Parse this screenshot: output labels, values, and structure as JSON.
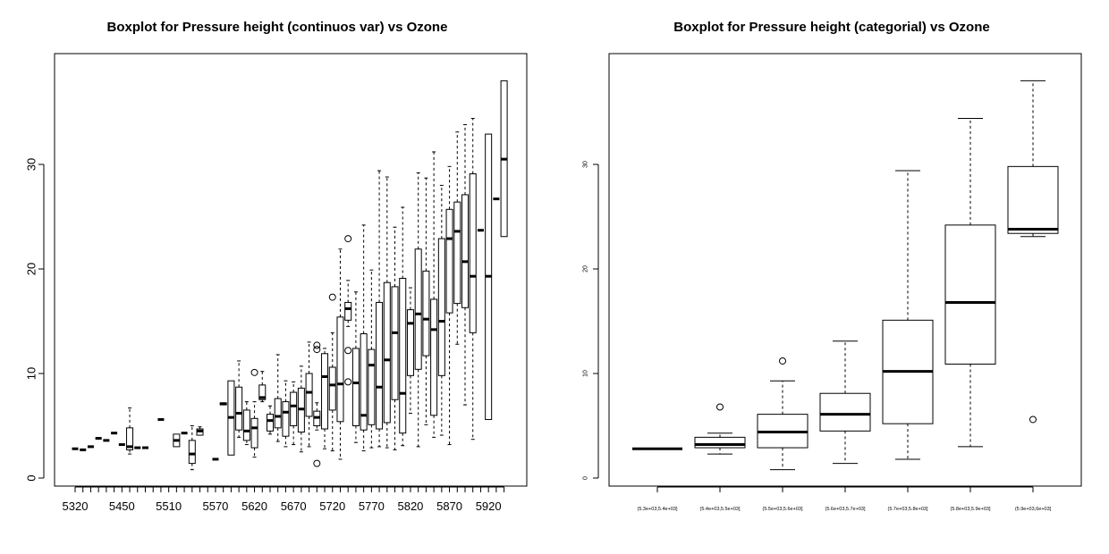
{
  "chart_data": [
    {
      "type": "boxplot",
      "title": "Boxplot for Pressure height (continuos var) vs Ozone",
      "xlabel": "",
      "ylabel": "",
      "ylim": [
        0,
        40
      ],
      "yticks": [
        0,
        10,
        20,
        30
      ],
      "ytick_labels": [
        "0",
        "10",
        "20",
        "30"
      ],
      "categories": [
        "5320",
        "5360",
        "5370",
        "5410",
        "5420",
        "5440",
        "5450",
        "5460",
        "5470",
        "5480",
        "5490",
        "5500",
        "5510",
        "5520",
        "5530",
        "5540",
        "5550",
        "5560",
        "5570",
        "5580",
        "5590",
        "5600",
        "5610",
        "5620",
        "5630",
        "5640",
        "5650",
        "5660",
        "5670",
        "5680",
        "5690",
        "5700",
        "5710",
        "5720",
        "5730",
        "5740",
        "5750",
        "5760",
        "5770",
        "5780",
        "5790",
        "5800",
        "5810",
        "5820",
        "5830",
        "5840",
        "5850",
        "5860",
        "5870",
        "5880",
        "5890",
        "5900",
        "5910",
        "5920",
        "5930",
        "5940"
      ],
      "shown_tick_labels": [
        "5320",
        "5450",
        "5510",
        "5570",
        "5620",
        "5670",
        "5720",
        "5770",
        "5820",
        "5870",
        "5920"
      ],
      "boxes": [
        {
          "x": "5320",
          "min": 2.8,
          "q1": 2.8,
          "median": 2.8,
          "q3": 2.8,
          "max": 2.8,
          "outliers": []
        },
        {
          "x": "5360",
          "min": 2.7,
          "q1": 2.7,
          "median": 2.7,
          "q3": 2.7,
          "max": 2.7,
          "outliers": []
        },
        {
          "x": "5370",
          "min": 3.0,
          "q1": 3.0,
          "median": 3.0,
          "q3": 3.0,
          "max": 3.0,
          "outliers": []
        },
        {
          "x": "5410",
          "min": 3.8,
          "q1": 3.8,
          "median": 3.8,
          "q3": 3.8,
          "max": 3.8,
          "outliers": []
        },
        {
          "x": "5420",
          "min": 3.6,
          "q1": 3.6,
          "median": 3.6,
          "q3": 3.6,
          "max": 3.6,
          "outliers": []
        },
        {
          "x": "5440",
          "min": 4.3,
          "q1": 4.3,
          "median": 4.3,
          "q3": 4.3,
          "max": 4.3,
          "outliers": []
        },
        {
          "x": "5450",
          "min": 3.2,
          "q1": 3.2,
          "median": 3.2,
          "q3": 3.2,
          "max": 3.2,
          "outliers": []
        },
        {
          "x": "5460",
          "min": 2.3,
          "q1": 2.7,
          "median": 3.0,
          "q3": 4.8,
          "max": 6.7,
          "outliers": []
        },
        {
          "x": "5470",
          "min": 2.9,
          "q1": 2.9,
          "median": 2.9,
          "q3": 2.9,
          "max": 2.9,
          "outliers": []
        },
        {
          "x": "5480",
          "min": 2.9,
          "q1": 2.9,
          "median": 2.9,
          "q3": 2.9,
          "max": 2.9,
          "outliers": []
        },
        {
          "x": "5490",
          "min": null,
          "q1": null,
          "median": null,
          "q3": null,
          "max": null,
          "outliers": []
        },
        {
          "x": "5500",
          "min": 5.6,
          "q1": 5.6,
          "median": 5.6,
          "q3": 5.6,
          "max": 5.6,
          "outliers": []
        },
        {
          "x": "5510",
          "min": null,
          "q1": null,
          "median": null,
          "q3": null,
          "max": null,
          "outliers": []
        },
        {
          "x": "5520",
          "min": 3.0,
          "q1": 3.0,
          "median": 3.6,
          "q3": 4.2,
          "max": 4.2,
          "outliers": []
        },
        {
          "x": "5530",
          "min": 4.3,
          "q1": 4.3,
          "median": 4.3,
          "q3": 4.3,
          "max": 4.3,
          "outliers": []
        },
        {
          "x": "5540",
          "min": 0.8,
          "q1": 1.4,
          "median": 2.3,
          "q3": 3.6,
          "max": 5.0,
          "outliers": []
        },
        {
          "x": "5550",
          "min": 4.1,
          "q1": 4.1,
          "median": 4.5,
          "q3": 4.7,
          "max": 4.9,
          "outliers": []
        },
        {
          "x": "5560",
          "min": null,
          "q1": null,
          "median": null,
          "q3": null,
          "max": null,
          "outliers": []
        },
        {
          "x": "5570",
          "min": 1.8,
          "q1": 1.8,
          "median": 1.8,
          "q3": 1.8,
          "max": 1.8,
          "outliers": []
        },
        {
          "x": "5580",
          "min": 7.0,
          "q1": 7.0,
          "median": 7.1,
          "q3": 7.2,
          "max": 7.2,
          "outliers": []
        },
        {
          "x": "5590",
          "min": 2.2,
          "q1": 2.2,
          "median": 5.8,
          "q3": 9.3,
          "max": 9.3,
          "outliers": []
        },
        {
          "x": "5600",
          "min": 3.9,
          "q1": 4.6,
          "median": 6.2,
          "q3": 8.7,
          "max": 11.2,
          "outliers": []
        },
        {
          "x": "5610",
          "min": 3.2,
          "q1": 3.6,
          "median": 4.5,
          "q3": 6.5,
          "max": 7.3,
          "outliers": []
        },
        {
          "x": "5620",
          "min": 2.0,
          "q1": 2.9,
          "median": 4.8,
          "q3": 5.7,
          "max": 7.3,
          "outliers": [
            10.1
          ]
        },
        {
          "x": "5630",
          "min": 7.3,
          "q1": 7.5,
          "median": 7.7,
          "q3": 8.9,
          "max": 10.2,
          "outliers": []
        },
        {
          "x": "5640",
          "min": 4.2,
          "q1": 4.5,
          "median": 5.5,
          "q3": 6.1,
          "max": 6.9,
          "outliers": []
        },
        {
          "x": "5650",
          "min": 3.5,
          "q1": 4.8,
          "median": 5.9,
          "q3": 7.6,
          "max": 11.8,
          "outliers": []
        },
        {
          "x": "5660",
          "min": 3.0,
          "q1": 4.0,
          "median": 6.3,
          "q3": 7.3,
          "max": 9.3,
          "outliers": []
        },
        {
          "x": "5670",
          "min": 3.2,
          "q1": 5.0,
          "median": 6.9,
          "q3": 8.2,
          "max": 9.2,
          "outliers": []
        },
        {
          "x": "5680",
          "min": 2.5,
          "q1": 4.4,
          "median": 6.6,
          "q3": 8.6,
          "max": 10.7,
          "outliers": []
        },
        {
          "x": "5690",
          "min": 3.0,
          "q1": 5.9,
          "median": 8.2,
          "q3": 10.0,
          "max": 13.0,
          "outliers": []
        },
        {
          "x": "5700",
          "min": 4.6,
          "q1": 5.0,
          "median": 5.8,
          "q3": 6.4,
          "max": 7.2,
          "outliers": [
            12.3,
            12.7,
            1.4
          ]
        },
        {
          "x": "5710",
          "min": 2.8,
          "q1": 4.7,
          "median": 9.7,
          "q3": 11.9,
          "max": 12.4,
          "outliers": []
        },
        {
          "x": "5720",
          "min": 2.6,
          "q1": 6.5,
          "median": 8.9,
          "q3": 10.6,
          "max": 13.9,
          "outliers": [
            17.3
          ]
        },
        {
          "x": "5730",
          "min": 1.8,
          "q1": 5.4,
          "median": 9.0,
          "q3": 15.4,
          "max": 21.9,
          "outliers": []
        },
        {
          "x": "5740",
          "min": 14.5,
          "q1": 15.1,
          "median": 16.2,
          "q3": 16.8,
          "max": 18.9,
          "outliers": [
            22.9,
            12.2,
            9.2
          ]
        },
        {
          "x": "5750",
          "min": 3.4,
          "q1": 5.0,
          "median": 9.1,
          "q3": 12.4,
          "max": 17.8,
          "outliers": []
        },
        {
          "x": "5760",
          "min": 2.6,
          "q1": 4.6,
          "median": 6.0,
          "q3": 13.8,
          "max": 24.2,
          "outliers": []
        },
        {
          "x": "5770",
          "min": 2.9,
          "q1": 5.1,
          "median": 10.8,
          "q3": 12.3,
          "max": 19.9,
          "outliers": []
        },
        {
          "x": "5780",
          "min": 3.0,
          "q1": 4.7,
          "median": 8.7,
          "q3": 16.8,
          "max": 29.4,
          "outliers": []
        },
        {
          "x": "5790",
          "min": 2.9,
          "q1": 5.3,
          "median": 11.3,
          "q3": 18.7,
          "max": 28.8,
          "outliers": []
        },
        {
          "x": "5800",
          "min": 2.7,
          "q1": 7.5,
          "median": 13.9,
          "q3": 18.3,
          "max": 24.0,
          "outliers": []
        },
        {
          "x": "5810",
          "min": 3.1,
          "q1": 4.3,
          "median": 8.1,
          "q3": 19.1,
          "max": 25.9,
          "outliers": []
        },
        {
          "x": "5820",
          "min": 6.2,
          "q1": 9.8,
          "median": 14.8,
          "q3": 16.1,
          "max": 18.2,
          "outliers": []
        },
        {
          "x": "5830",
          "min": 3.0,
          "q1": 10.4,
          "median": 15.7,
          "q3": 21.9,
          "max": 29.2,
          "outliers": []
        },
        {
          "x": "5840",
          "min": 5.1,
          "q1": 11.7,
          "median": 15.2,
          "q3": 19.8,
          "max": 28.7,
          "outliers": []
        },
        {
          "x": "5850",
          "min": 3.9,
          "q1": 6.0,
          "median": 14.2,
          "q3": 17.1,
          "max": 31.2,
          "outliers": []
        },
        {
          "x": "5860",
          "min": 4.1,
          "q1": 9.8,
          "median": 15.0,
          "q3": 22.9,
          "max": 28.0,
          "outliers": []
        },
        {
          "x": "5870",
          "min": 3.2,
          "q1": 15.8,
          "median": 22.9,
          "q3": 25.7,
          "max": 29.8,
          "outliers": []
        },
        {
          "x": "5880",
          "min": 12.8,
          "q1": 16.7,
          "median": 23.6,
          "q3": 26.4,
          "max": 33.1,
          "outliers": []
        },
        {
          "x": "5890",
          "min": 7.0,
          "q1": 16.3,
          "median": 20.7,
          "q3": 27.1,
          "max": 33.8,
          "outliers": []
        },
        {
          "x": "5900",
          "min": 3.7,
          "q1": 13.9,
          "median": 19.3,
          "q3": 29.1,
          "max": 34.4,
          "outliers": []
        },
        {
          "x": "5910",
          "min": 23.7,
          "q1": 23.7,
          "median": 23.7,
          "q3": 23.7,
          "max": 23.7,
          "outliers": []
        },
        {
          "x": "5920",
          "min": 5.6,
          "q1": 5.6,
          "median": 19.3,
          "q3": 32.9,
          "max": 32.9,
          "outliers": []
        },
        {
          "x": "5930",
          "min": 26.7,
          "q1": 26.7,
          "median": 26.7,
          "q3": 26.7,
          "max": 26.7,
          "outliers": []
        },
        {
          "x": "5940",
          "min": 23.1,
          "q1": 23.1,
          "median": 30.5,
          "q3": 38.0,
          "max": 38.0,
          "outliers": []
        }
      ]
    },
    {
      "type": "boxplot",
      "title": "Boxplot for Pressure height (categorial) vs Ozone",
      "xlabel": "",
      "ylabel": "",
      "ylim": [
        0,
        40
      ],
      "yticks": [
        0,
        10,
        20,
        30
      ],
      "ytick_labels": [
        "0",
        "10",
        "20",
        "30"
      ],
      "categories": [
        "(5.3e+03,5.4e+03]",
        "(5.4e+03,5.5e+03]",
        "(5.5e+03,5.6e+03]",
        "(5.6e+03,5.7e+03]",
        "(5.7e+03,5.8e+03]",
        "(5.8e+03,5.9e+03]",
        "(5.9e+03,6e+03]"
      ],
      "boxes": [
        {
          "x": "(5.3e+03,5.4e+03]",
          "min": 2.8,
          "q1": 2.8,
          "median": 2.8,
          "q3": 2.8,
          "max": 2.8,
          "outliers": []
        },
        {
          "x": "(5.4e+03,5.5e+03]",
          "min": 2.3,
          "q1": 2.9,
          "median": 3.2,
          "q3": 3.9,
          "max": 4.3,
          "outliers": [
            6.8
          ]
        },
        {
          "x": "(5.5e+03,5.6e+03]",
          "min": 0.8,
          "q1": 2.9,
          "median": 4.4,
          "q3": 6.1,
          "max": 9.3,
          "outliers": [
            11.2
          ]
        },
        {
          "x": "(5.6e+03,5.7e+03]",
          "min": 1.4,
          "q1": 4.5,
          "median": 6.1,
          "q3": 8.1,
          "max": 13.1,
          "outliers": []
        },
        {
          "x": "(5.7e+03,5.8e+03]",
          "min": 1.8,
          "q1": 5.2,
          "median": 10.2,
          "q3": 15.1,
          "max": 29.4,
          "outliers": []
        },
        {
          "x": "(5.8e+03,5.9e+03]",
          "min": 3.0,
          "q1": 10.9,
          "median": 16.8,
          "q3": 24.2,
          "max": 34.4,
          "outliers": []
        },
        {
          "x": "(5.9e+03,6e+03]",
          "min": 23.1,
          "q1": 23.4,
          "median": 23.8,
          "q3": 29.8,
          "max": 38.0,
          "outliers": [
            5.6
          ]
        }
      ]
    }
  ]
}
